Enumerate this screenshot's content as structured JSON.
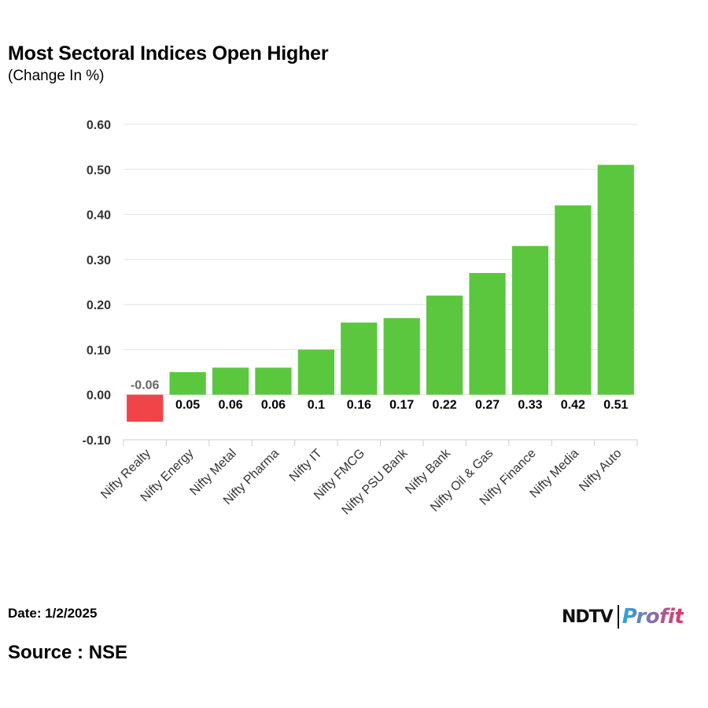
{
  "chart_data": {
    "type": "bar",
    "title": "Most Sectoral Indices Open Higher",
    "subtitle": "(Change In %)",
    "categories": [
      "Nifty Realty",
      "Nifty Energy",
      "Nifty Metal",
      "Nifty Pharma",
      "Nifty IT",
      "Nifty FMCG",
      "Nifty PSU Bank",
      "Nifty Bank",
      "Nifty Oil & Gas",
      "Nifty Finance",
      "Nifty Media",
      "Nifty Auto"
    ],
    "values": [
      -0.06,
      0.05,
      0.06,
      0.06,
      0.1,
      0.16,
      0.17,
      0.22,
      0.27,
      0.33,
      0.42,
      0.51
    ],
    "data_labels": [
      "-0.06",
      "0.05",
      "0.06",
      "0.06",
      "0.1",
      "0.16",
      "0.17",
      "0.22",
      "0.27",
      "0.33",
      "0.42",
      "0.51"
    ],
    "yticks": [
      "0.60",
      "0.50",
      "0.40",
      "0.30",
      "0.20",
      "0.10",
      "0.00",
      "-0.10"
    ],
    "ylim": [
      -0.1,
      0.6
    ],
    "xlabel": "",
    "ylabel": "",
    "grid": true,
    "positive_color": "#5bc73e",
    "negative_color": "#f04449"
  },
  "footer": {
    "date": "Date: 1/2/2025",
    "source": "Source : NSE"
  },
  "logo": {
    "brand": "NDTV",
    "product": "Profit",
    "brand_color": "#111111",
    "product_color_left": "#29a8e0",
    "product_color_right": "#e8336e"
  }
}
